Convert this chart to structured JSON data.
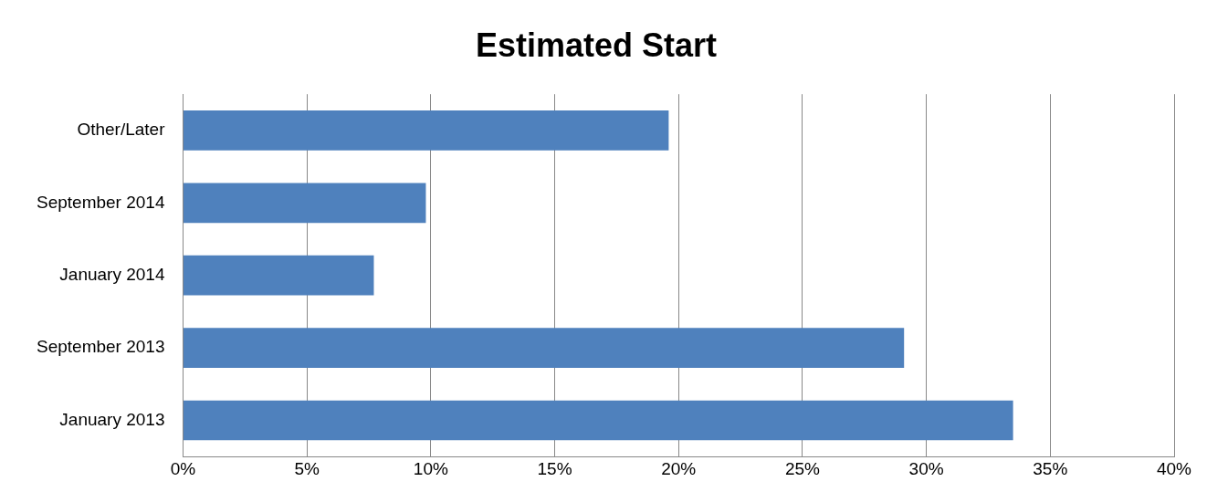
{
  "chart_data": {
    "type": "bar",
    "orientation": "horizontal",
    "title": "Estimated Start",
    "categories": [
      "Other/Later",
      "September 2014",
      "January 2014",
      "September 2013",
      "January 2013"
    ],
    "values": [
      19.6,
      9.8,
      7.7,
      29.1,
      33.5
    ],
    "color": "#4f81bd",
    "xlim": [
      0,
      40
    ],
    "xticks": [
      {
        "value": 0,
        "label": "0%"
      },
      {
        "value": 5,
        "label": "5%"
      },
      {
        "value": 10,
        "label": "10%"
      },
      {
        "value": 15,
        "label": "15%"
      },
      {
        "value": 20,
        "label": "20%"
      },
      {
        "value": 25,
        "label": "25%"
      },
      {
        "value": 30,
        "label": "30%"
      },
      {
        "value": 35,
        "label": "35%"
      },
      {
        "value": 40,
        "label": "40%"
      }
    ],
    "grid": "x",
    "legend": false
  }
}
